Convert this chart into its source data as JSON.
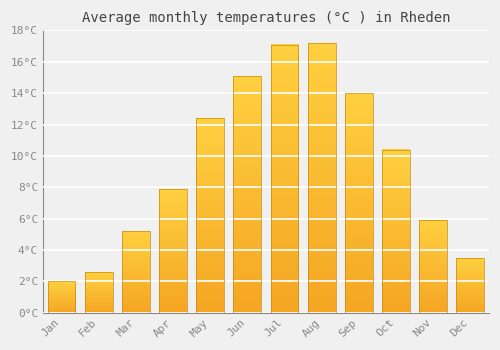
{
  "title": "Average monthly temperatures (°C ) in Rheden",
  "months": [
    "Jan",
    "Feb",
    "Mar",
    "Apr",
    "May",
    "Jun",
    "Jul",
    "Aug",
    "Sep",
    "Oct",
    "Nov",
    "Dec"
  ],
  "values": [
    2.0,
    2.6,
    5.2,
    7.9,
    12.4,
    15.1,
    17.1,
    17.2,
    14.0,
    10.4,
    5.9,
    3.5
  ],
  "bar_color_bottom": "#F5A623",
  "bar_color_top": "#FFD040",
  "bar_edge_color": "#C8880A",
  "ylim": [
    0,
    18
  ],
  "yticks": [
    0,
    2,
    4,
    6,
    8,
    10,
    12,
    14,
    16,
    18
  ],
  "ytick_labels": [
    "0°C",
    "2°C",
    "4°C",
    "6°C",
    "8°C",
    "10°C",
    "12°C",
    "14°C",
    "16°C",
    "18°C"
  ],
  "background_color": "#f0f0f0",
  "plot_bg_color": "#f0f0f0",
  "grid_color": "#ffffff",
  "title_fontsize": 10,
  "tick_fontsize": 8,
  "bar_width": 0.75,
  "tick_color": "#888888",
  "title_color": "#444444"
}
